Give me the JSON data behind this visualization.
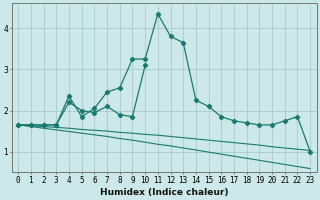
{
  "x": [
    0,
    1,
    2,
    3,
    4,
    5,
    6,
    7,
    8,
    9,
    10,
    11,
    12,
    13,
    14,
    15,
    16,
    17,
    18,
    19,
    20,
    21,
    22,
    23
  ],
  "line_main": [
    1.65,
    1.65,
    1.65,
    1.65,
    2.35,
    1.85,
    2.05,
    2.45,
    2.55,
    3.25,
    3.25,
    4.35,
    3.8,
    3.65,
    2.25,
    2.1,
    1.85,
    1.75,
    1.7,
    1.65,
    1.65,
    1.75,
    1.85,
    1.0
  ],
  "line_short": [
    1.65,
    1.65,
    1.65,
    1.65,
    2.2,
    2.0,
    1.95,
    2.1,
    1.9,
    1.85,
    3.1,
    null,
    null,
    null,
    null,
    null,
    null,
    null,
    null,
    null,
    null,
    null,
    null,
    null
  ],
  "line_upper": [
    1.65,
    1.63,
    1.61,
    1.59,
    1.57,
    1.54,
    1.52,
    1.5,
    1.47,
    1.45,
    1.42,
    1.4,
    1.37,
    1.34,
    1.31,
    1.28,
    1.25,
    1.22,
    1.19,
    1.16,
    1.12,
    1.09,
    1.06,
    1.03
  ],
  "line_lower": [
    1.65,
    1.61,
    1.57,
    1.53,
    1.49,
    1.45,
    1.41,
    1.37,
    1.32,
    1.28,
    1.23,
    1.18,
    1.14,
    1.09,
    1.04,
    0.99,
    0.94,
    0.89,
    0.84,
    0.79,
    0.74,
    0.69,
    0.64,
    0.59
  ],
  "bg_color": "#cce8e8",
  "grid_color": "#aacaca",
  "line_color": "#1a7a6e",
  "xlabel": "Humidex (Indice chaleur)",
  "ylim": [
    0.5,
    4.6
  ],
  "xlim": [
    -0.5,
    23.5
  ],
  "yticks": [
    1,
    2,
    3,
    4
  ],
  "xticks": [
    0,
    1,
    2,
    3,
    4,
    5,
    6,
    7,
    8,
    9,
    10,
    11,
    12,
    13,
    14,
    15,
    16,
    17,
    18,
    19,
    20,
    21,
    22,
    23
  ]
}
